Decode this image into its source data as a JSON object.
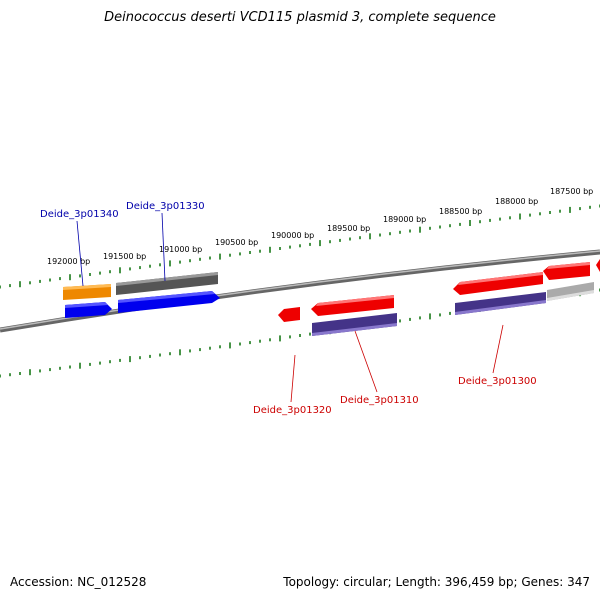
{
  "title": "Deinococcus deserti VCD115 plasmid 3, complete sequence",
  "footer": {
    "accession": "Accession: NC_012528",
    "summary": "Topology: circular; Length: 396,459 bp; Genes: 347"
  },
  "scale": {
    "labels": [
      "192000 bp",
      "191500 bp",
      "191000 bp",
      "190500 bp",
      "190000 bp",
      "189500 bp",
      "189000 bp",
      "188500 bp",
      "188000 bp",
      "187500 bp"
    ]
  },
  "genes": {
    "deide_3p01340": "Deide_3p01340",
    "deide_3p01330": "Deide_3p01330",
    "deide_3p01320": "Deide_3p01320",
    "deide_3p01310": "Deide_3p01310",
    "deide_3p01300": "Deide_3p01300"
  },
  "colors": {
    "forward_label": "#0000aa",
    "reverse_label": "#cc0000",
    "tick": "#1a7a1a",
    "backbone": "#888888",
    "cds_red": "#ee0000",
    "cds_blue": "#0000ee",
    "cds_orange": "#ee8800",
    "cds_gray": "#555555",
    "cds_lightgray": "#aaaaaa",
    "cds_navy": "#443388"
  }
}
